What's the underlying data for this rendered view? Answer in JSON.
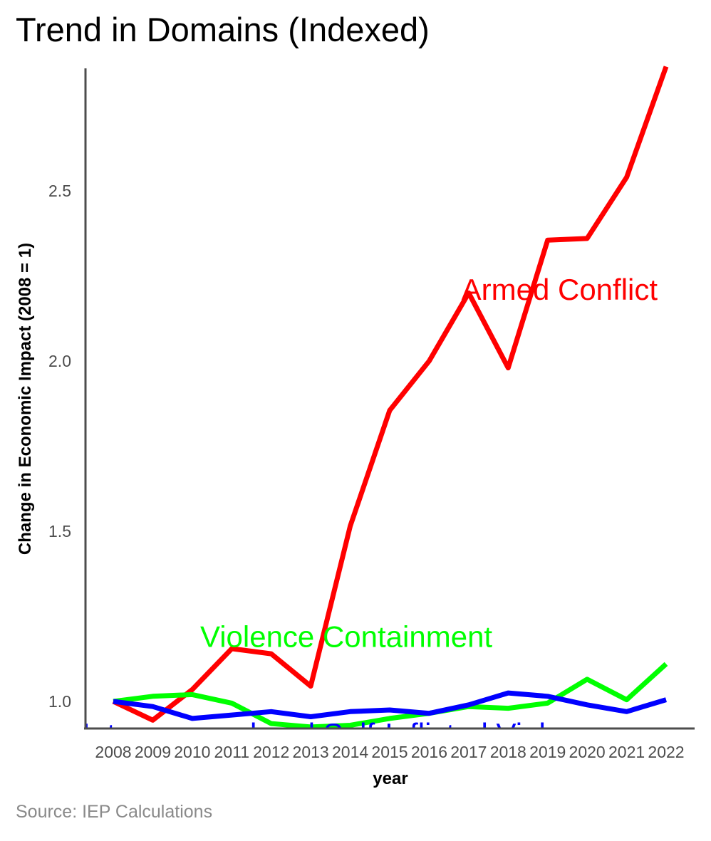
{
  "chart_data": {
    "type": "line",
    "title": "Trend in Domains (Indexed)",
    "caption": "Source: IEP Calculations",
    "xlabel": "year",
    "ylabel": "Change in Economic Impact (2008 = 1)",
    "x": [
      2008,
      2009,
      2010,
      2011,
      2012,
      2013,
      2014,
      2015,
      2016,
      2017,
      2018,
      2019,
      2020,
      2021,
      2022
    ],
    "x_tick_labels": [
      "2008",
      "2009",
      "2010",
      "2011",
      "2012",
      "2013",
      "2014",
      "2015",
      "2016",
      "2017",
      "2018",
      "2019",
      "2020",
      "2021",
      "2022"
    ],
    "y_ticks": [
      1.0,
      1.5,
      2.0,
      2.5
    ],
    "y_tick_labels": [
      "1.0",
      "1.5",
      "2.0",
      "2.5"
    ],
    "ylim": [
      0.925,
      2.865
    ],
    "grid": false,
    "legend": "none (direct labels)",
    "series": [
      {
        "name": "Armed Conflict",
        "color": "#ff0000",
        "values": [
          1.0,
          0.945,
          1.035,
          1.155,
          1.14,
          1.045,
          1.515,
          1.855,
          2.0,
          2.2,
          1.98,
          2.355,
          2.36,
          2.54,
          2.865
        ]
      },
      {
        "name": "Violence Containment",
        "color": "#00ff00",
        "values": [
          1.0,
          1.015,
          1.02,
          0.995,
          0.935,
          0.925,
          0.93,
          0.95,
          0.965,
          0.985,
          0.98,
          0.995,
          1.065,
          1.005,
          1.11
        ]
      },
      {
        "name": "Interpersonal and Self-Inflicted Violence",
        "color": "#0000ff",
        "values": [
          1.0,
          0.985,
          0.95,
          0.96,
          0.97,
          0.955,
          0.97,
          0.975,
          0.965,
          0.99,
          1.025,
          1.015,
          0.99,
          0.97,
          1.005
        ]
      }
    ],
    "direct_labels": [
      {
        "text": "Armed Conflict",
        "color": "#ff0000",
        "x": 2019.3,
        "y": 2.18
      },
      {
        "text": "Violence Containment",
        "color": "#00ff00",
        "x": 2013.9,
        "y": 1.16
      },
      {
        "text": "Interpersonal and Self-Inflicted Violence",
        "color": "#0000ff",
        "x": 2013.9,
        "y": 0.875
      }
    ]
  }
}
